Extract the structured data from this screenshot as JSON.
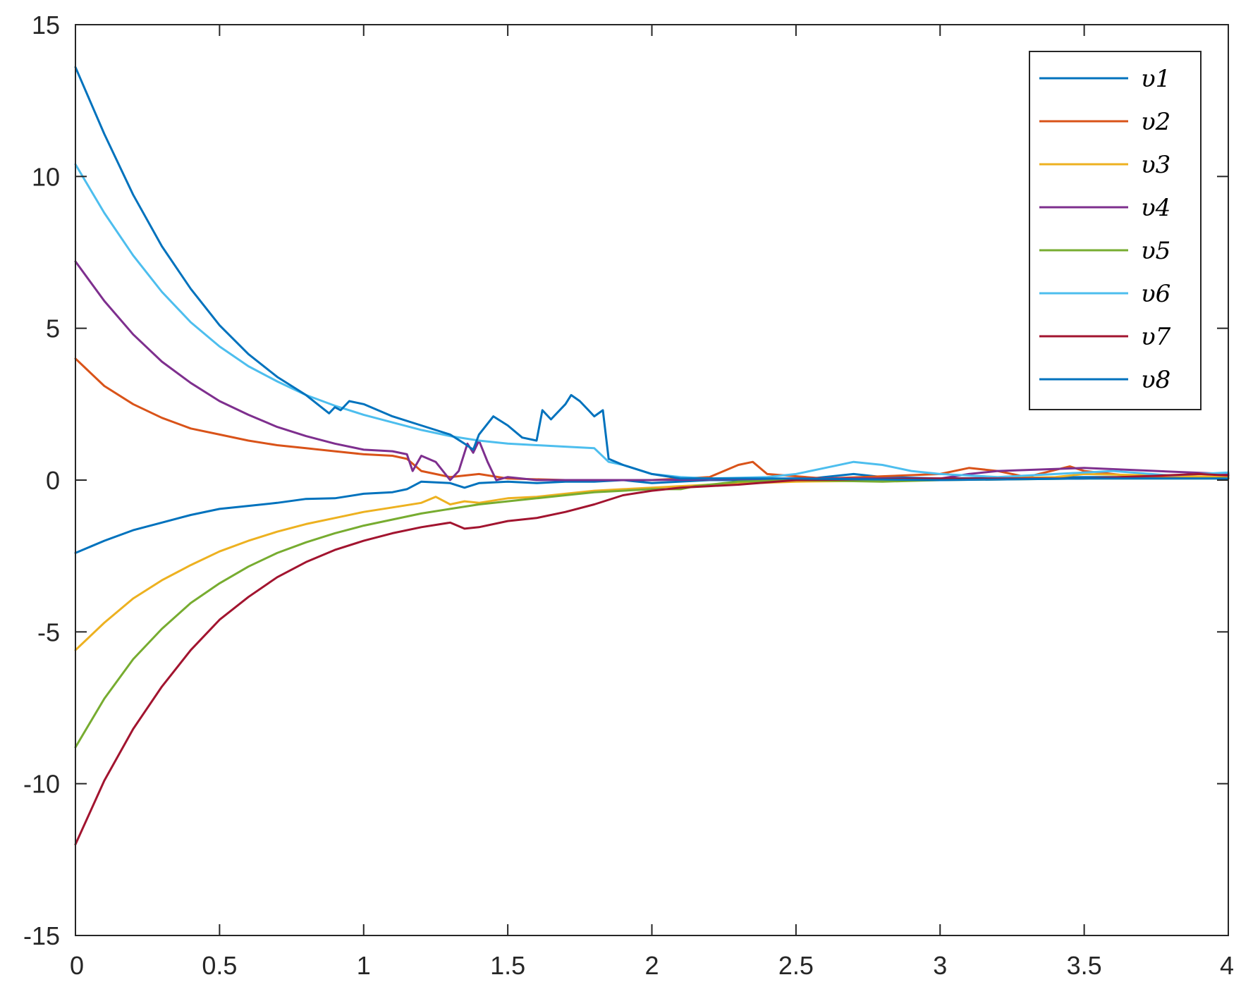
{
  "chart_data": {
    "type": "line",
    "title": "",
    "xlabel": "",
    "ylabel": "",
    "xlim": [
      0,
      4
    ],
    "ylim": [
      -15,
      15
    ],
    "xticks": [
      0,
      0.5,
      1,
      1.5,
      2,
      2.5,
      3,
      3.5,
      4
    ],
    "xtick_labels": [
      "0",
      "0.5",
      "1",
      "1.5",
      "2",
      "2.5",
      "3",
      "3.5",
      "4"
    ],
    "yticks": [
      -15,
      -10,
      -5,
      0,
      5,
      10,
      15
    ],
    "ytick_labels": [
      "-15",
      "-10",
      "-5",
      "0",
      "5",
      "10",
      "15"
    ],
    "grid": false,
    "legend_position": "top-right",
    "series": [
      {
        "name": "υ1",
        "color": "#0072BD",
        "x": [
          0,
          0.1,
          0.2,
          0.3,
          0.4,
          0.5,
          0.6,
          0.7,
          0.8,
          0.9,
          1.0,
          1.1,
          1.15,
          1.2,
          1.3,
          1.35,
          1.4,
          1.5,
          1.6,
          1.7,
          1.8,
          1.9,
          2.0,
          2.2,
          2.5,
          2.7,
          2.8,
          3.0,
          3.5,
          4.0
        ],
        "y": [
          -2.4,
          -2.0,
          -1.65,
          -1.4,
          -1.15,
          -0.95,
          -0.85,
          -0.75,
          -0.62,
          -0.6,
          -0.45,
          -0.4,
          -0.3,
          -0.05,
          -0.1,
          -0.25,
          -0.1,
          -0.05,
          -0.1,
          -0.05,
          -0.05,
          0.0,
          -0.1,
          0.0,
          0.0,
          0.2,
          0.1,
          0.05,
          0.1,
          0.1
        ]
      },
      {
        "name": "υ2",
        "color": "#D95319",
        "x": [
          0,
          0.1,
          0.2,
          0.3,
          0.4,
          0.5,
          0.6,
          0.7,
          0.8,
          0.9,
          1.0,
          1.1,
          1.15,
          1.2,
          1.3,
          1.4,
          1.5,
          1.7,
          2.0,
          2.2,
          2.3,
          2.35,
          2.4,
          2.6,
          3.0,
          3.1,
          3.2,
          3.3,
          3.45,
          3.5,
          3.7,
          4.0
        ],
        "y": [
          4.0,
          3.1,
          2.5,
          2.05,
          1.7,
          1.5,
          1.3,
          1.15,
          1.05,
          0.95,
          0.85,
          0.8,
          0.7,
          0.3,
          0.1,
          0.2,
          0.05,
          0.0,
          0.0,
          0.1,
          0.5,
          0.6,
          0.2,
          0.05,
          0.2,
          0.4,
          0.3,
          0.1,
          0.45,
          0.3,
          0.1,
          0.1
        ]
      },
      {
        "name": "υ3",
        "color": "#EDB120",
        "x": [
          0,
          0.1,
          0.2,
          0.3,
          0.4,
          0.5,
          0.6,
          0.7,
          0.8,
          0.9,
          1.0,
          1.1,
          1.2,
          1.25,
          1.3,
          1.35,
          1.4,
          1.5,
          1.6,
          1.7,
          1.8,
          1.9,
          2.0,
          2.2,
          2.5,
          3.0,
          3.4,
          3.5,
          4.0
        ],
        "y": [
          -5.6,
          -4.7,
          -3.9,
          -3.3,
          -2.8,
          -2.35,
          -2.0,
          -1.7,
          -1.45,
          -1.25,
          -1.05,
          -0.9,
          -0.75,
          -0.55,
          -0.8,
          -0.7,
          -0.75,
          -0.6,
          -0.55,
          -0.45,
          -0.35,
          -0.3,
          -0.25,
          -0.15,
          -0.05,
          0.0,
          0.1,
          0.2,
          0.1
        ]
      },
      {
        "name": "υ4",
        "color": "#7E2F8E",
        "x": [
          0,
          0.1,
          0.2,
          0.3,
          0.4,
          0.5,
          0.6,
          0.7,
          0.8,
          0.9,
          1.0,
          1.1,
          1.15,
          1.17,
          1.2,
          1.25,
          1.3,
          1.33,
          1.36,
          1.38,
          1.4,
          1.43,
          1.46,
          1.5,
          1.6,
          1.8,
          2.0,
          2.5,
          3.0,
          3.1,
          3.2,
          3.5,
          4.0
        ],
        "y": [
          7.2,
          5.9,
          4.8,
          3.9,
          3.2,
          2.6,
          2.15,
          1.75,
          1.45,
          1.2,
          1.0,
          0.95,
          0.85,
          0.3,
          0.8,
          0.6,
          0.0,
          0.3,
          1.2,
          0.9,
          1.3,
          0.6,
          0.0,
          0.1,
          0.0,
          0.0,
          0.0,
          0.05,
          0.05,
          0.2,
          0.3,
          0.4,
          0.2
        ]
      },
      {
        "name": "υ5",
        "color": "#77AC30",
        "x": [
          0,
          0.1,
          0.2,
          0.3,
          0.4,
          0.5,
          0.6,
          0.7,
          0.8,
          0.9,
          1.0,
          1.1,
          1.2,
          1.3,
          1.4,
          1.5,
          1.6,
          1.7,
          1.8,
          1.9,
          2.0,
          2.1,
          2.15,
          2.2,
          2.25,
          2.3,
          2.5,
          2.8,
          3.0,
          3.5,
          4.0
        ],
        "y": [
          -8.8,
          -7.2,
          -5.9,
          -4.9,
          -4.05,
          -3.4,
          -2.85,
          -2.4,
          -2.05,
          -1.75,
          -1.5,
          -1.3,
          -1.1,
          -0.95,
          -0.8,
          -0.7,
          -0.6,
          -0.5,
          -0.4,
          -0.35,
          -0.3,
          -0.3,
          -0.2,
          -0.15,
          -0.1,
          -0.05,
          0.0,
          -0.05,
          0.0,
          0.05,
          0.05
        ]
      },
      {
        "name": "υ6",
        "color": "#4DBEEE",
        "x": [
          0,
          0.1,
          0.2,
          0.3,
          0.4,
          0.5,
          0.6,
          0.7,
          0.8,
          0.9,
          1.0,
          1.1,
          1.2,
          1.3,
          1.4,
          1.5,
          1.6,
          1.7,
          1.8,
          1.85,
          1.9,
          2.0,
          2.1,
          2.2,
          2.4,
          2.5,
          2.6,
          2.7,
          2.8,
          2.9,
          3.0,
          3.2,
          3.4,
          3.6,
          3.8,
          4.0
        ],
        "y": [
          10.4,
          8.8,
          7.4,
          6.2,
          5.2,
          4.4,
          3.75,
          3.25,
          2.8,
          2.45,
          2.15,
          1.9,
          1.65,
          1.45,
          1.3,
          1.2,
          1.15,
          1.1,
          1.05,
          0.6,
          0.5,
          0.2,
          0.1,
          0.05,
          0.1,
          0.2,
          0.4,
          0.6,
          0.5,
          0.3,
          0.2,
          0.1,
          0.2,
          0.3,
          0.15,
          0.25
        ]
      },
      {
        "name": "υ7",
        "color": "#A2142F",
        "x": [
          0,
          0.1,
          0.2,
          0.3,
          0.4,
          0.5,
          0.6,
          0.7,
          0.8,
          0.9,
          1.0,
          1.1,
          1.2,
          1.3,
          1.35,
          1.4,
          1.5,
          1.6,
          1.7,
          1.8,
          1.9,
          2.0,
          2.1,
          2.2,
          2.3,
          2.5,
          3.0,
          3.5,
          3.9,
          4.0
        ],
        "y": [
          -12.0,
          -9.9,
          -8.2,
          -6.8,
          -5.6,
          -4.6,
          -3.85,
          -3.2,
          -2.7,
          -2.3,
          -2.0,
          -1.75,
          -1.55,
          -1.4,
          -1.6,
          -1.55,
          -1.35,
          -1.25,
          -1.05,
          -0.8,
          -0.5,
          -0.35,
          -0.25,
          -0.2,
          -0.15,
          0.0,
          0.05,
          0.05,
          0.2,
          0.15
        ]
      },
      {
        "name": "υ8",
        "color": "#0072BD",
        "x": [
          0,
          0.1,
          0.2,
          0.3,
          0.4,
          0.5,
          0.6,
          0.7,
          0.8,
          0.88,
          0.9,
          0.92,
          0.95,
          1.0,
          1.1,
          1.2,
          1.3,
          1.35,
          1.38,
          1.4,
          1.45,
          1.5,
          1.55,
          1.6,
          1.62,
          1.65,
          1.7,
          1.72,
          1.75,
          1.78,
          1.8,
          1.83,
          1.85,
          1.9,
          2.0,
          2.1,
          2.5,
          3.0,
          3.5,
          4.0
        ],
        "y": [
          13.6,
          11.4,
          9.4,
          7.7,
          6.3,
          5.1,
          4.15,
          3.4,
          2.8,
          2.2,
          2.4,
          2.3,
          2.6,
          2.5,
          2.1,
          1.8,
          1.5,
          1.2,
          1.0,
          1.5,
          2.1,
          1.8,
          1.4,
          1.3,
          2.3,
          2.0,
          2.5,
          2.8,
          2.6,
          2.3,
          2.1,
          2.3,
          0.7,
          0.5,
          0.2,
          0.05,
          0.05,
          0.0,
          0.05,
          0.05
        ]
      }
    ]
  }
}
